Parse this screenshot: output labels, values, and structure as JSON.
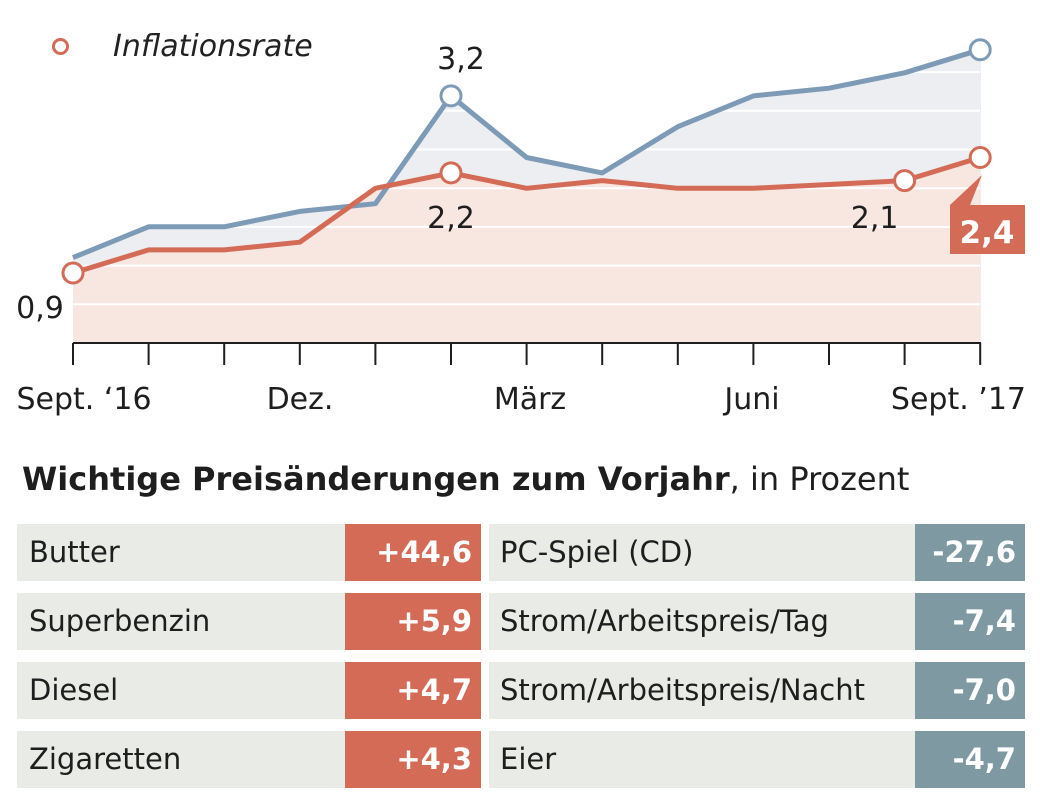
{
  "chart_data": {
    "type": "line",
    "x_tick_labels": [
      "Sept. ‘16",
      "Dez.",
      "März",
      "Juni",
      "Sept. ’17"
    ],
    "series": [
      {
        "name": "",
        "color": "#7d9ab6",
        "values": [
          1.1,
          1.5,
          1.5,
          1.7,
          1.8,
          3.2,
          2.4,
          2.2,
          2.8,
          3.2,
          3.3,
          3.5,
          3.8
        ],
        "point_labels": [
          {
            "index": 5,
            "text": "3,2"
          }
        ]
      },
      {
        "name": "Inflationsrate",
        "color": "#d46b56",
        "values": [
          0.9,
          1.2,
          1.2,
          1.3,
          2.0,
          2.2,
          2.0,
          2.1,
          2.0,
          2.0,
          2.05,
          2.1,
          2.4
        ],
        "point_labels": [
          {
            "index": 0,
            "text": "0,9"
          },
          {
            "index": 5,
            "text": "2,2"
          },
          {
            "index": 11,
            "text": "2,1"
          }
        ],
        "highlight_label": "2,4"
      }
    ]
  },
  "price_table": {
    "title_bold": "Wichtige Preisänderungen zum Vorjahr",
    "title_rest": ", in Prozent",
    "increases": [
      {
        "label": "Butter",
        "value": "+44,6"
      },
      {
        "label": "Superbenzin",
        "value": "+5,9"
      },
      {
        "label": "Diesel",
        "value": "+4,7"
      },
      {
        "label": "Zigaretten",
        "value": "+4,3"
      }
    ],
    "decreases": [
      {
        "label": "PC-Spiel (CD)",
        "value": "-27,6"
      },
      {
        "label": "Strom/Arbeitspreis/Tag",
        "value": "-7,4"
      },
      {
        "label": "Strom/Arbeitspreis/Nacht",
        "value": "-7,0"
      },
      {
        "label": "Eier",
        "value": "-4,7"
      }
    ]
  }
}
